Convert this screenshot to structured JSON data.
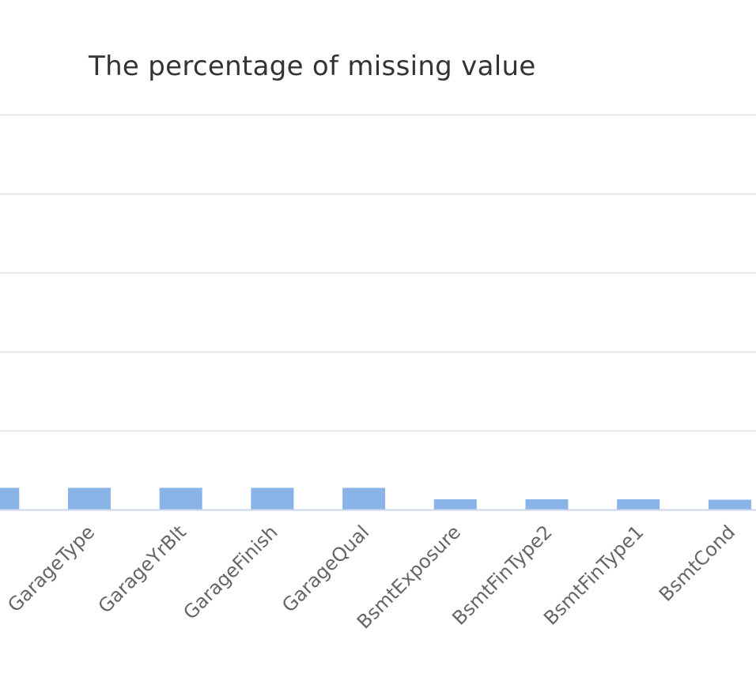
{
  "chart_data": {
    "type": "bar",
    "title": "The percentage of missing value",
    "xlabel": "",
    "ylabel": "",
    "ylim": [
      0,
      100
    ],
    "grid": true,
    "colors": {
      "bar": "#8ab4e8",
      "grid": "#e6e6e6",
      "axis": "#ccd6eb",
      "label": "#666666",
      "title": "#333333"
    },
    "categories": [
      "GarageType",
      "GarageYrBlt",
      "GarageFinish",
      "GarageQual",
      "BsmtExposure",
      "BsmtFinType2",
      "BsmtFinType1",
      "BsmtCond"
    ],
    "values": [
      5.5,
      5.5,
      5.5,
      5.5,
      2.6,
      2.6,
      2.6,
      2.5
    ]
  }
}
